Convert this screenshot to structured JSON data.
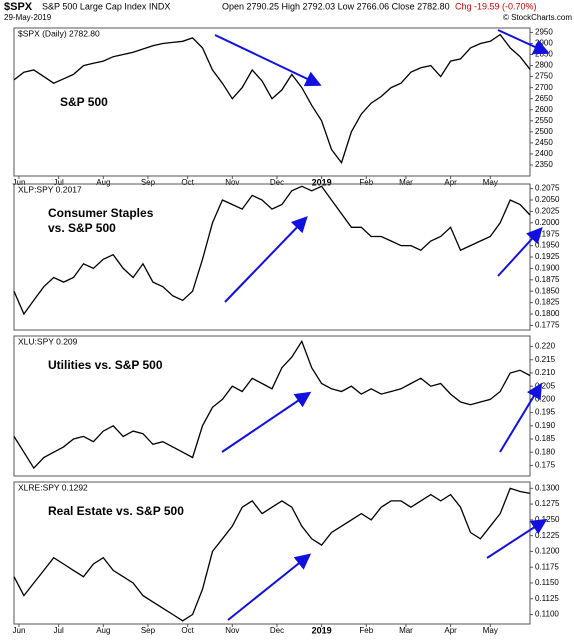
{
  "header": {
    "symbol": "$SPX",
    "name": "S&P 500 Large Cap Index INDX",
    "ohlc": "Open 2790.25  High 2792.03  Low 2766.06  Close 2782.80",
    "change": "Chg -19.59 (-0.70%)",
    "date": "29-May-2019",
    "source": "© StockCharts.com"
  },
  "chart_data": [
    {
      "type": "line",
      "legend": "$SPX (Daily) 2782.80",
      "annotation": [
        "S&P 500"
      ],
      "color": "#000000",
      "values": [
        2735,
        2770,
        2780,
        2750,
        2720,
        2740,
        2760,
        2800,
        2810,
        2820,
        2840,
        2850,
        2860,
        2875,
        2890,
        2900,
        2905,
        2910,
        2925,
        2880,
        2780,
        2720,
        2650,
        2700,
        2780,
        2730,
        2650,
        2690,
        2760,
        2700,
        2620,
        2550,
        2420,
        2360,
        2500,
        2580,
        2630,
        2660,
        2700,
        2720,
        2770,
        2790,
        2800,
        2750,
        2820,
        2830,
        2880,
        2900,
        2910,
        2940,
        2880,
        2840,
        2783
      ],
      "ylim": [
        2300,
        2970
      ],
      "yticks": [
        2350,
        2400,
        2450,
        2500,
        2550,
        2600,
        2650,
        2700,
        2750,
        2800,
        2850,
        2900,
        2950
      ],
      "xlim": [
        0,
        52
      ],
      "xticks": [
        {
          "value": 0.5,
          "label": "Jun"
        },
        {
          "value": 4.5,
          "label": "Jul"
        },
        {
          "value": 9,
          "label": "Aug"
        },
        {
          "value": 13.5,
          "label": "Sep"
        },
        {
          "value": 17.5,
          "label": "Oct"
        },
        {
          "value": 22,
          "label": "Nov"
        },
        {
          "value": 26.5,
          "label": "Dec"
        },
        {
          "value": 31,
          "label": "2019"
        },
        {
          "value": 35.5,
          "label": "Feb"
        },
        {
          "value": 39.5,
          "label": "Mar"
        },
        {
          "value": 44,
          "label": "Apr"
        },
        {
          "value": 48,
          "label": "May"
        }
      ]
    },
    {
      "type": "line",
      "legend": "XLP:SPY 0.2017",
      "annotation": [
        "Consumer Staples",
        "vs. S&P 500"
      ],
      "color": "#000000",
      "values": [
        0.185,
        0.18,
        0.183,
        0.186,
        0.188,
        0.187,
        0.188,
        0.191,
        0.19,
        0.192,
        0.193,
        0.19,
        0.188,
        0.191,
        0.187,
        0.186,
        0.184,
        0.183,
        0.185,
        0.192,
        0.2,
        0.205,
        0.204,
        0.203,
        0.206,
        0.205,
        0.203,
        0.204,
        0.207,
        0.208,
        0.207,
        0.208,
        0.205,
        0.202,
        0.199,
        0.199,
        0.197,
        0.197,
        0.196,
        0.195,
        0.195,
        0.194,
        0.196,
        0.197,
        0.199,
        0.194,
        0.195,
        0.196,
        0.197,
        0.2,
        0.205,
        0.204,
        0.2017
      ],
      "ylim": [
        0.1765,
        0.2085
      ],
      "yticks": [
        0.1775,
        {
          "value": 0.18,
          "label": "0.1800"
        },
        0.1825,
        {
          "value": 0.185,
          "label": "0.1850"
        },
        0.1875,
        {
          "value": 0.19,
          "label": "0.1900"
        },
        0.1925,
        {
          "value": 0.195,
          "label": "0.1950"
        },
        0.1975,
        {
          "value": 0.2,
          "label": "0.2000"
        },
        0.2025,
        {
          "value": 0.205,
          "label": "0.2050"
        },
        0.2075
      ],
      "xlim": [
        0,
        52
      ]
    },
    {
      "type": "line",
      "legend": "XLU:SPY 0.209",
      "annotation": [
        "Utilities vs. S&P 500"
      ],
      "color": "#000000",
      "values": [
        0.186,
        0.18,
        0.174,
        0.178,
        0.18,
        0.182,
        0.185,
        0.186,
        0.184,
        0.188,
        0.19,
        0.186,
        0.188,
        0.187,
        0.183,
        0.184,
        0.182,
        0.18,
        0.178,
        0.19,
        0.197,
        0.2,
        0.205,
        0.203,
        0.208,
        0.206,
        0.204,
        0.212,
        0.216,
        0.222,
        0.212,
        0.206,
        0.204,
        0.203,
        0.205,
        0.202,
        0.204,
        0.202,
        0.203,
        0.204,
        0.206,
        0.208,
        0.205,
        0.206,
        0.202,
        0.199,
        0.198,
        0.199,
        0.2,
        0.203,
        0.21,
        0.211,
        0.209
      ],
      "ylim": [
        0.171,
        0.224
      ],
      "yticks": [
        0.175,
        {
          "value": 0.18,
          "label": "0.180"
        },
        0.185,
        {
          "value": 0.19,
          "label": "0.190"
        },
        0.195,
        {
          "value": 0.2,
          "label": "0.200"
        },
        0.205,
        {
          "value": 0.21,
          "label": "0.210"
        },
        0.215,
        {
          "value": 0.22,
          "label": "0.220"
        }
      ],
      "xlim": [
        0,
        52
      ]
    },
    {
      "type": "line",
      "legend": "XLRE:SPY 0.1292",
      "annotation": [
        "Real Estate vs. S&P 500"
      ],
      "color": "#000000",
      "values": [
        0.116,
        0.113,
        0.115,
        0.117,
        0.119,
        0.118,
        0.117,
        0.116,
        0.118,
        0.119,
        0.117,
        0.116,
        0.115,
        0.113,
        0.112,
        0.111,
        0.11,
        0.109,
        0.11,
        0.114,
        0.12,
        0.122,
        0.124,
        0.127,
        0.128,
        0.126,
        0.127,
        0.128,
        0.127,
        0.124,
        0.122,
        0.121,
        0.123,
        0.124,
        0.125,
        0.126,
        0.125,
        0.127,
        0.128,
        0.128,
        0.127,
        0.128,
        0.129,
        0.128,
        0.129,
        0.127,
        0.123,
        0.122,
        0.124,
        0.126,
        0.13,
        0.1295,
        0.1292
      ],
      "ylim": [
        0.1085,
        0.131
      ],
      "yticks": [
        {
          "value": 0.11,
          "label": "0.1100"
        },
        0.1125,
        {
          "value": 0.115,
          "label": "0.1150"
        },
        0.1175,
        {
          "value": 0.12,
          "label": "0.1200"
        },
        0.1225,
        {
          "value": 0.125,
          "label": "0.1250"
        },
        0.1275,
        {
          "value": 0.13,
          "label": "0.1300"
        }
      ],
      "xlim": [
        0,
        52
      ],
      "xticks": [
        {
          "value": 0.5,
          "label": "Jun"
        },
        {
          "value": 4.5,
          "label": "Jul"
        },
        {
          "value": 9,
          "label": "Aug"
        },
        {
          "value": 13.5,
          "label": "Sep"
        },
        {
          "value": 17.5,
          "label": "Oct"
        },
        {
          "value": 22,
          "label": "Nov"
        },
        {
          "value": 26.5,
          "label": "Dec"
        },
        {
          "value": 31,
          "label": "2019"
        },
        {
          "value": 35.5,
          "label": "Feb"
        },
        {
          "value": 39.5,
          "label": "Mar"
        },
        {
          "value": 44,
          "label": "Apr"
        },
        {
          "value": 48,
          "label": "May"
        }
      ]
    }
  ]
}
